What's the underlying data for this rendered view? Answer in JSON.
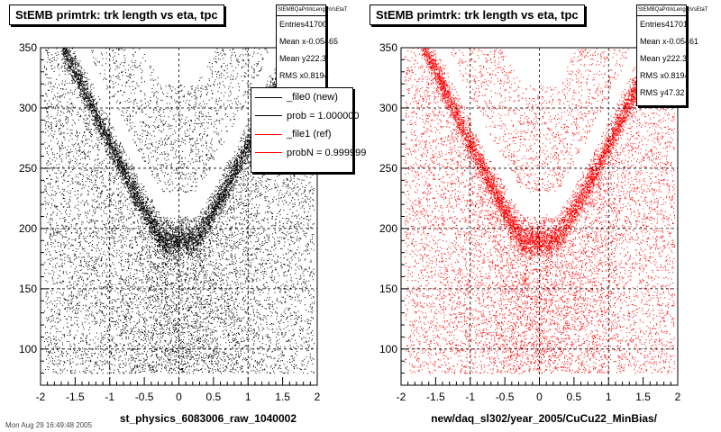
{
  "chart_data": [
    {
      "type": "scatter",
      "title": "StEMB primtrk: trk length vs eta, tpc",
      "xlabel": "st_physics_6083006_raw_1040002",
      "ylabel": "",
      "xlim": [
        -2,
        2
      ],
      "ylim": [
        70,
        350
      ],
      "xticks": [
        "-2",
        "-1.5",
        "-1",
        "-0.5",
        "0",
        "0.5",
        "1",
        "1.5",
        "2"
      ],
      "yticks": [
        "100",
        "150",
        "200",
        "250",
        "300",
        "350"
      ],
      "grid": true,
      "marker_color": "#000000",
      "stats": {
        "name": "StEMBQaPrtrkLengthVsEtaT",
        "rows": [
          {
            "label": "Entries",
            "value": "41700"
          },
          {
            "label": "Mean x",
            "value": "-0.05465"
          },
          {
            "label": "Mean y",
            "value": "222.3"
          },
          {
            "label": "RMS x",
            "value": "0.8194"
          }
        ]
      },
      "legend": {
        "placement": "right",
        "entries": [
          {
            "label": "_file0 (new)",
            "color": "#000000"
          },
          {
            "label": "prob = 1.000000",
            "color": "#000000"
          },
          {
            "label": "_file1 (ref)",
            "color": "#ff0000"
          },
          {
            "label": "probN = 0.999999",
            "color": "#ff0000"
          }
        ]
      }
    },
    {
      "type": "scatter",
      "title": "StEMB primtrk: trk length vs eta, tpc",
      "xlabel": "new/daq_sl302/year_2005/CuCu22_MinBias/",
      "ylabel": "",
      "xlim": [
        -2,
        2
      ],
      "ylim": [
        70,
        350
      ],
      "xticks": [
        "-2",
        "-1.5",
        "-1",
        "-0.5",
        "0",
        "0.5",
        "1",
        "1.5",
        "2"
      ],
      "yticks": [
        "100",
        "150",
        "200",
        "250",
        "300",
        "350"
      ],
      "grid": true,
      "marker_color": "#ff0000",
      "stats": {
        "name": "StEMBQaPrtrkLengthVsEtaT",
        "rows": [
          {
            "label": "Entries",
            "value": "41701"
          },
          {
            "label": "Mean x",
            "value": "-0.05461"
          },
          {
            "label": "Mean y",
            "value": "222.3"
          },
          {
            "label": "RMS x",
            "value": "0.8194"
          },
          {
            "label": "RMS y",
            "value": "47.32"
          }
        ]
      }
    }
  ],
  "footer": "Mon Aug 29 16:49:48 2005"
}
